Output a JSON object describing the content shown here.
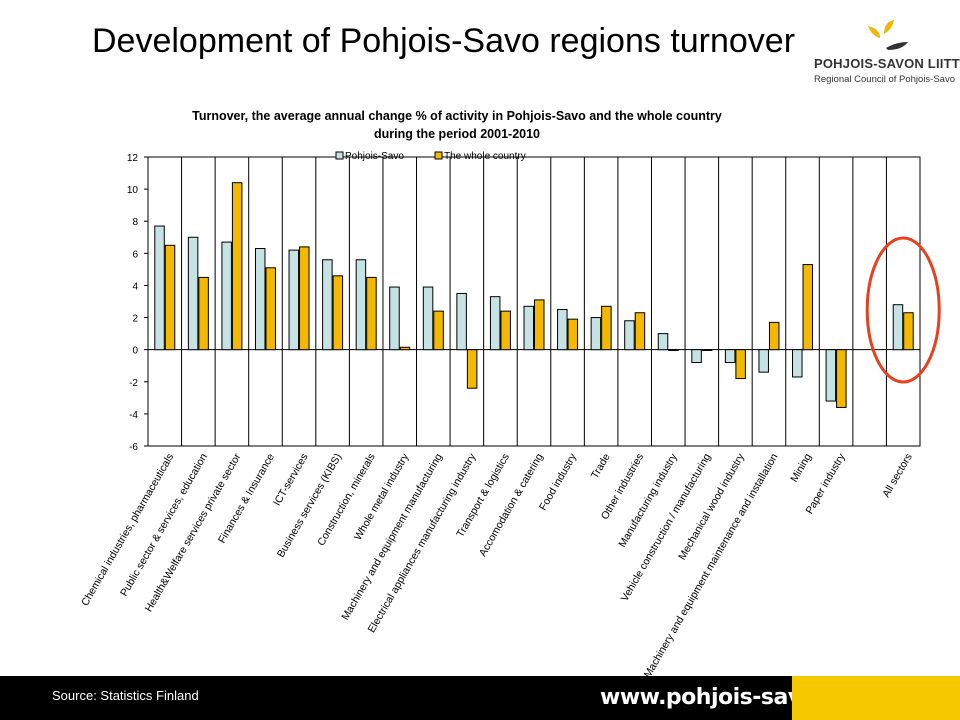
{
  "slide": {
    "title": "Development of Pohjois-Savo regions turnover",
    "logo_name": "POHJOIS-SAVON LIITTO",
    "logo_subtitle": "Regional Council of Pohjois-Savo",
    "source": "Source:  Statistics Finland",
    "website": "www.pohjois-savo.fi",
    "colors": {
      "footer": "#000000",
      "footer_accent": "#f6c800",
      "highlight_circle": "#e8401c"
    },
    "logo_icon": "leaf-sprout-logo"
  },
  "chart_data": {
    "type": "bar",
    "title_lines": [
      "Turnover, the average annual change % of activity in Pohjois-Savo and the whole country",
      "during the period 2001-2010"
    ],
    "ylim": [
      -6,
      12
    ],
    "yticks": [
      12,
      10,
      8,
      6,
      4,
      2,
      0,
      -2,
      -4,
      -6
    ],
    "legend_position": "top",
    "categories": [
      "Chemical industries, pharmaceuticals",
      "Public sector & services, education",
      "Health&Welfare services private sector",
      "Finances & Insurance",
      "ICT-services",
      "Business services (KIBS)",
      "Construction, minerals",
      "Whole metal industry",
      "Machinery and equipment manufacturing",
      "Electrical appliances manufacturing industry",
      "Transport & logistics",
      "Accomodation & catering",
      "Food industry",
      "Trade",
      "Other industries",
      "Manufacturing industry",
      "Vehicle construction / manufacturing",
      "Mechanical wood industry",
      "Machinery and equipment maintenance and installation",
      "Mining",
      "Paper industry",
      "",
      "All sectors"
    ],
    "series": [
      {
        "name": "Pohjois-Savo",
        "color": "#c5e3e4",
        "values": [
          7.7,
          7.0,
          6.7,
          6.3,
          6.2,
          5.6,
          5.6,
          3.9,
          3.9,
          3.5,
          3.3,
          2.7,
          2.5,
          2.0,
          1.8,
          1.0,
          -0.8,
          -0.8,
          -1.4,
          -1.7,
          -3.2,
          null,
          2.8
        ]
      },
      {
        "name": "The whole country",
        "color": "#f5b800",
        "values": [
          6.5,
          4.5,
          10.4,
          5.1,
          6.4,
          4.6,
          4.5,
          0.15,
          2.4,
          -2.4,
          2.4,
          3.1,
          1.9,
          2.7,
          2.3,
          -0.05,
          -0.05,
          -1.8,
          1.7,
          5.3,
          -3.6,
          null,
          2.3
        ]
      }
    ],
    "highlighted_category": "All sectors"
  }
}
